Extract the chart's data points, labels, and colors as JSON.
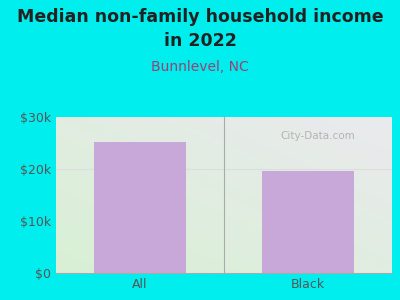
{
  "title_line1": "Median non-family household income",
  "title_line2": "in 2022",
  "subtitle": "Bunnlevel, NC",
  "categories": [
    "All",
    "Black"
  ],
  "values": [
    25200,
    19600
  ],
  "bar_color": "#c8a8d8",
  "title_color": "#222222",
  "subtitle_color": "#9b4070",
  "tick_label_color": "#555555",
  "background_color": "#00EEEE",
  "plot_bg_color_bottom_left": "#d8f0d4",
  "plot_bg_color_top_right": "#e8e8ec",
  "ylim": [
    0,
    30000
  ],
  "yticks": [
    0,
    10000,
    20000,
    30000
  ],
  "ytick_labels": [
    "$0",
    "$10k",
    "$20k",
    "$30k"
  ],
  "watermark": "City-Data.com",
  "title_fontsize": 12.5,
  "subtitle_fontsize": 10,
  "tick_fontsize": 9,
  "grid_line_color": "#dddddd",
  "divider_color": "#aaaaaa",
  "bottom_border_color": "#aaaaaa"
}
